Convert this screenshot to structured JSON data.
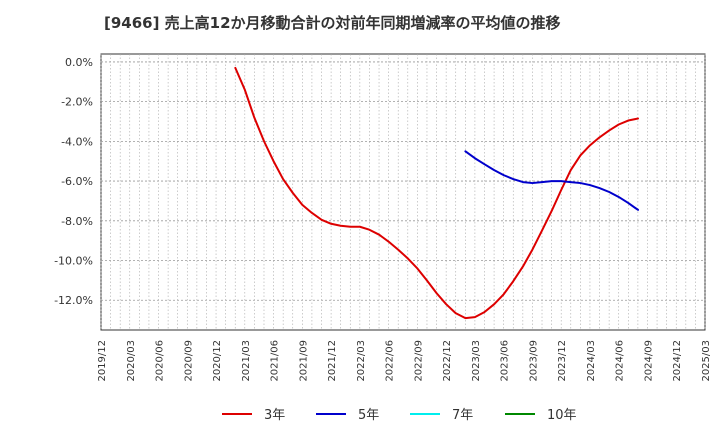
{
  "chart_data": {
    "type": "line",
    "title": "[9466]  売上高12か月移動合計の対前年同期増減率の平均値の推移",
    "xlabel": "",
    "ylabel": "",
    "ylim": [
      -13.5,
      0.4
    ],
    "yticks": [
      0,
      -2,
      -4,
      -6,
      -8,
      -10,
      -12
    ],
    "ytick_labels": [
      "0.0%",
      "-2.0%",
      "-4.0%",
      "-6.0%",
      "-8.0%",
      "-10.0%",
      "-12.0%"
    ],
    "x_categories": [
      "2019/12",
      "2020/03",
      "2020/06",
      "2020/09",
      "2020/12",
      "2021/03",
      "2021/06",
      "2021/09",
      "2021/12",
      "2022/03",
      "2022/06",
      "2022/09",
      "2022/12",
      "2023/03",
      "2023/06",
      "2023/09",
      "2023/12",
      "2024/03",
      "2024/06",
      "2024/09",
      "2024/12",
      "2025/03"
    ],
    "grid": true,
    "legend_position": "bottom",
    "series": [
      {
        "name": "3年",
        "color": "#dd0000",
        "points": [
          [
            4.67,
            -0.3
          ],
          [
            5.0,
            -1.4
          ],
          [
            5.33,
            -2.8
          ],
          [
            5.67,
            -4.0
          ],
          [
            6.0,
            -5.0
          ],
          [
            6.33,
            -5.9
          ],
          [
            6.67,
            -6.6
          ],
          [
            7.0,
            -7.2
          ],
          [
            7.33,
            -7.6
          ],
          [
            7.67,
            -7.95
          ],
          [
            8.0,
            -8.15
          ],
          [
            8.33,
            -8.25
          ],
          [
            8.67,
            -8.3
          ],
          [
            9.0,
            -8.3
          ],
          [
            9.33,
            -8.45
          ],
          [
            9.67,
            -8.7
          ],
          [
            10.0,
            -9.05
          ],
          [
            10.33,
            -9.45
          ],
          [
            10.67,
            -9.9
          ],
          [
            11.0,
            -10.4
          ],
          [
            11.33,
            -11.0
          ],
          [
            11.67,
            -11.65
          ],
          [
            12.0,
            -12.2
          ],
          [
            12.33,
            -12.65
          ],
          [
            12.67,
            -12.9
          ],
          [
            13.0,
            -12.85
          ],
          [
            13.33,
            -12.6
          ],
          [
            13.67,
            -12.2
          ],
          [
            14.0,
            -11.7
          ],
          [
            14.33,
            -11.05
          ],
          [
            14.67,
            -10.3
          ],
          [
            15.0,
            -9.45
          ],
          [
            15.33,
            -8.5
          ],
          [
            15.67,
            -7.5
          ],
          [
            16.0,
            -6.45
          ],
          [
            16.33,
            -5.45
          ],
          [
            16.67,
            -4.7
          ],
          [
            17.0,
            -4.2
          ],
          [
            17.33,
            -3.8
          ],
          [
            17.67,
            -3.45
          ],
          [
            18.0,
            -3.15
          ],
          [
            18.33,
            -2.95
          ],
          [
            18.67,
            -2.85
          ]
        ]
      },
      {
        "name": "5年",
        "color": "#0000cc",
        "points": [
          [
            12.67,
            -4.5
          ],
          [
            13.0,
            -4.85
          ],
          [
            13.33,
            -5.15
          ],
          [
            13.67,
            -5.45
          ],
          [
            14.0,
            -5.7
          ],
          [
            14.33,
            -5.9
          ],
          [
            14.67,
            -6.05
          ],
          [
            15.0,
            -6.1
          ],
          [
            15.33,
            -6.05
          ],
          [
            15.67,
            -6.0
          ],
          [
            16.0,
            -6.0
          ],
          [
            16.33,
            -6.05
          ],
          [
            16.67,
            -6.1
          ],
          [
            17.0,
            -6.2
          ],
          [
            17.33,
            -6.35
          ],
          [
            17.67,
            -6.55
          ],
          [
            18.0,
            -6.8
          ],
          [
            18.33,
            -7.1
          ],
          [
            18.67,
            -7.45
          ]
        ]
      },
      {
        "name": "7年",
        "color": "#00eeee",
        "points": []
      },
      {
        "name": "10年",
        "color": "#008800",
        "points": []
      }
    ]
  }
}
